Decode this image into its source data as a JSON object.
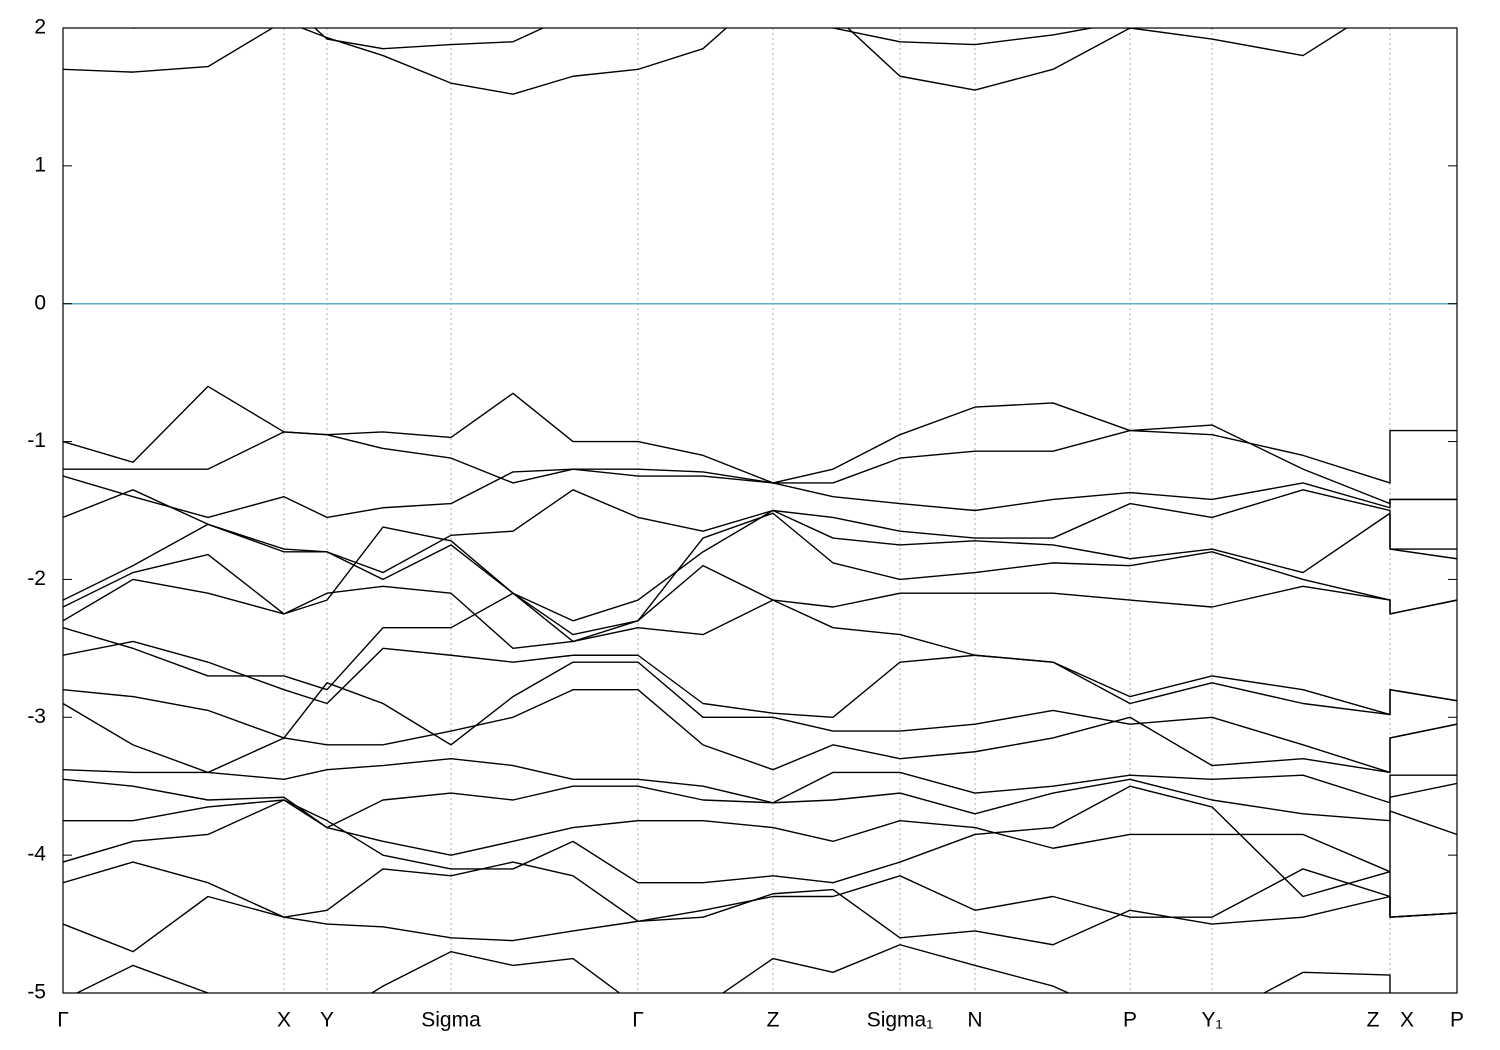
{
  "chart_data": {
    "type": "line",
    "x": [
      0,
      0.7,
      1.45,
      2.21,
      2.64,
      3.2,
      3.88,
      4.5,
      5.1,
      5.75,
      6.4,
      7.1,
      7.7,
      8.37,
      9.12,
      9.9,
      10.67,
      11.49,
      12.4,
      13.27,
      13.27,
      13.94
    ],
    "xlim": [
      0,
      13.94
    ],
    "xticks": [
      {
        "value": 0,
        "label": "Γ"
      },
      {
        "value": 2.21,
        "label": "X"
      },
      {
        "value": 2.64,
        "label": "Y"
      },
      {
        "value": 3.88,
        "label": "Sigma"
      },
      {
        "value": 5.75,
        "label": "Γ"
      },
      {
        "value": 7.1,
        "label": "Z"
      },
      {
        "value": 8.37,
        "label": "Sigma₁"
      },
      {
        "value": 9.12,
        "label": "N"
      },
      {
        "value": 10.67,
        "label": "P"
      },
      {
        "value": 11.49,
        "label": "Y₁"
      },
      {
        "value": 13.1,
        "label": "Z"
      },
      {
        "value": 13.44,
        "label": "X"
      },
      {
        "value": 13.94,
        "label": "P"
      }
    ],
    "xgrid": [
      2.21,
      2.64,
      3.88,
      5.75,
      7.1,
      8.37,
      9.12,
      10.67,
      11.49,
      13.27
    ],
    "ylim": [
      -5,
      2
    ],
    "yticks": [
      -5,
      -4,
      -3,
      -2,
      -1,
      0,
      1,
      2
    ],
    "line_color": "#000000",
    "reference_line": {
      "value": 0,
      "color": "#5aaec8"
    },
    "series": [
      {
        "values": [
          1.7,
          1.68,
          1.72,
          2.05,
          1.93,
          1.8,
          1.6,
          1.52,
          1.65,
          1.7,
          1.85,
          2.3,
          2.1,
          1.65,
          1.55,
          1.7,
          2.0,
          1.92,
          1.8,
          2.2,
          2.2,
          2.2
        ]
      },
      {
        "values": [
          2.1,
          2.0,
          2.05,
          2.2,
          1.92,
          1.85,
          1.88,
          1.9,
          2.1,
          2.3,
          2.3,
          2.3,
          2.0,
          1.9,
          1.88,
          1.95,
          2.05,
          2.0,
          2.2,
          2.3,
          2.3,
          2.3
        ]
      },
      {
        "values": [
          -1.0,
          -1.15,
          -0.6,
          -0.93,
          -0.95,
          -0.93,
          -0.97,
          -0.65,
          -1.0,
          -1.0,
          -1.1,
          -1.3,
          -1.2,
          -0.95,
          -0.75,
          -0.72,
          -0.92,
          -0.95,
          -1.1,
          -1.3,
          -0.92,
          -0.92
        ]
      },
      {
        "values": [
          -1.2,
          -1.2,
          -1.2,
          -0.93,
          -0.95,
          -1.05,
          -1.12,
          -1.3,
          -1.2,
          -1.2,
          -1.22,
          -1.3,
          -1.3,
          -1.12,
          -1.07,
          -1.07,
          -0.92,
          -0.88,
          -1.2,
          -1.45,
          -1.42,
          -1.42
        ]
      },
      {
        "values": [
          -1.25,
          -1.4,
          -1.55,
          -1.4,
          -1.55,
          -1.48,
          -1.45,
          -1.22,
          -1.2,
          -1.25,
          -1.25,
          -1.3,
          -1.4,
          -1.45,
          -1.5,
          -1.42,
          -1.37,
          -1.42,
          -1.3,
          -1.48,
          -1.42,
          -1.42
        ]
      },
      {
        "values": [
          -1.55,
          -1.35,
          -1.6,
          -1.8,
          -1.8,
          -1.95,
          -1.68,
          -1.65,
          -1.35,
          -1.55,
          -1.65,
          -1.5,
          -1.55,
          -1.65,
          -1.7,
          -1.7,
          -1.45,
          -1.55,
          -1.35,
          -1.5,
          -1.78,
          -1.78
        ]
      },
      {
        "values": [
          -2.15,
          -1.9,
          -1.6,
          -1.78,
          -1.8,
          -2.0,
          -1.75,
          -2.1,
          -2.3,
          -2.15,
          -1.8,
          -1.5,
          -1.7,
          -1.75,
          -1.72,
          -1.75,
          -1.85,
          -1.78,
          -1.95,
          -1.52,
          -1.78,
          -1.85
        ]
      },
      {
        "values": [
          -2.2,
          -1.95,
          -1.82,
          -2.25,
          -2.15,
          -1.62,
          -1.72,
          -2.1,
          -2.4,
          -2.3,
          -1.7,
          -1.52,
          -1.88,
          -2.0,
          -1.95,
          -1.88,
          -1.9,
          -1.8,
          -2.0,
          -2.15,
          -2.25,
          -2.15
        ]
      },
      {
        "values": [
          -2.3,
          -2.0,
          -2.1,
          -2.25,
          -2.1,
          -2.05,
          -2.1,
          -2.5,
          -2.45,
          -2.3,
          -1.9,
          -2.15,
          -2.2,
          -2.1,
          -2.1,
          -2.1,
          -2.15,
          -2.2,
          -2.05,
          -2.15,
          -2.25,
          -2.15
        ]
      },
      {
        "values": [
          -2.35,
          -2.5,
          -2.7,
          -2.7,
          -2.8,
          -2.35,
          -2.35,
          -2.1,
          -2.45,
          -2.35,
          -2.4,
          -2.15,
          -2.35,
          -2.4,
          -2.55,
          -2.6,
          -2.85,
          -2.7,
          -2.8,
          -2.98,
          -2.8,
          -2.88
        ]
      },
      {
        "values": [
          -2.55,
          -2.45,
          -2.6,
          -2.8,
          -2.9,
          -2.5,
          -2.55,
          -2.6,
          -2.55,
          -2.55,
          -2.9,
          -2.97,
          -3.0,
          -2.6,
          -2.55,
          -2.6,
          -2.9,
          -2.75,
          -2.9,
          -2.98,
          -2.8,
          -2.88
        ]
      },
      {
        "values": [
          -2.8,
          -2.85,
          -2.95,
          -3.15,
          -2.75,
          -2.9,
          -3.2,
          -2.85,
          -2.6,
          -2.6,
          -3.0,
          -3.0,
          -3.1,
          -3.1,
          -3.05,
          -2.95,
          -3.05,
          -3.0,
          -3.2,
          -3.4,
          -3.15,
          -3.05
        ]
      },
      {
        "values": [
          -2.9,
          -3.2,
          -3.4,
          -3.15,
          -3.2,
          -3.2,
          -3.1,
          -3.0,
          -2.8,
          -2.8,
          -3.2,
          -3.38,
          -3.2,
          -3.3,
          -3.25,
          -3.15,
          -3.0,
          -3.35,
          -3.3,
          -3.4,
          -3.15,
          -3.05
        ]
      },
      {
        "values": [
          -3.38,
          -3.4,
          -3.4,
          -3.45,
          -3.38,
          -3.35,
          -3.3,
          -3.35,
          -3.45,
          -3.45,
          -3.5,
          -3.62,
          -3.4,
          -3.4,
          -3.55,
          -3.5,
          -3.42,
          -3.45,
          -3.42,
          -3.62,
          -3.42,
          -3.42
        ]
      },
      {
        "values": [
          -3.45,
          -3.5,
          -3.6,
          -3.58,
          -3.8,
          -3.6,
          -3.55,
          -3.6,
          -3.5,
          -3.5,
          -3.6,
          -3.62,
          -3.6,
          -3.55,
          -3.7,
          -3.55,
          -3.45,
          -3.6,
          -3.7,
          -3.75,
          -3.58,
          -3.48
        ]
      },
      {
        "values": [
          -3.75,
          -3.75,
          -3.65,
          -3.6,
          -3.8,
          -3.9,
          -4.0,
          -3.9,
          -3.8,
          -3.75,
          -3.75,
          -3.8,
          -3.9,
          -3.75,
          -3.8,
          -3.95,
          -3.85,
          -3.85,
          -3.85,
          -4.12,
          -3.68,
          -3.85
        ]
      },
      {
        "values": [
          -4.05,
          -3.9,
          -3.85,
          -3.6,
          -3.75,
          -4.0,
          -4.1,
          -4.1,
          -3.9,
          -4.2,
          -4.2,
          -4.15,
          -4.2,
          -4.05,
          -3.85,
          -3.8,
          -3.5,
          -3.65,
          -4.3,
          -4.12,
          -4.45,
          -4.42
        ]
      },
      {
        "values": [
          -4.2,
          -4.05,
          -4.2,
          -4.45,
          -4.4,
          -4.1,
          -4.15,
          -4.05,
          -4.15,
          -4.48,
          -4.4,
          -4.3,
          -4.3,
          -4.15,
          -4.4,
          -4.3,
          -4.45,
          -4.45,
          -4.1,
          -4.3,
          -4.45,
          -4.42
        ]
      },
      {
        "values": [
          -4.5,
          -4.7,
          -4.3,
          -4.45,
          -4.5,
          -4.52,
          -4.6,
          -4.62,
          -4.55,
          -4.48,
          -4.45,
          -4.28,
          -4.25,
          -4.6,
          -4.55,
          -4.65,
          -4.4,
          -4.5,
          -4.45,
          -4.3,
          -4.45,
          -4.42
        ]
      },
      {
        "values": [
          -5.05,
          -4.8,
          -5.0,
          -5.3,
          -5.2,
          -4.95,
          -4.7,
          -4.8,
          -4.75,
          -5.1,
          -5.1,
          -4.75,
          -4.85,
          -4.65,
          -4.8,
          -4.95,
          -5.2,
          -5.2,
          -4.85,
          -4.87,
          -5.2,
          -5.2
        ]
      }
    ]
  }
}
